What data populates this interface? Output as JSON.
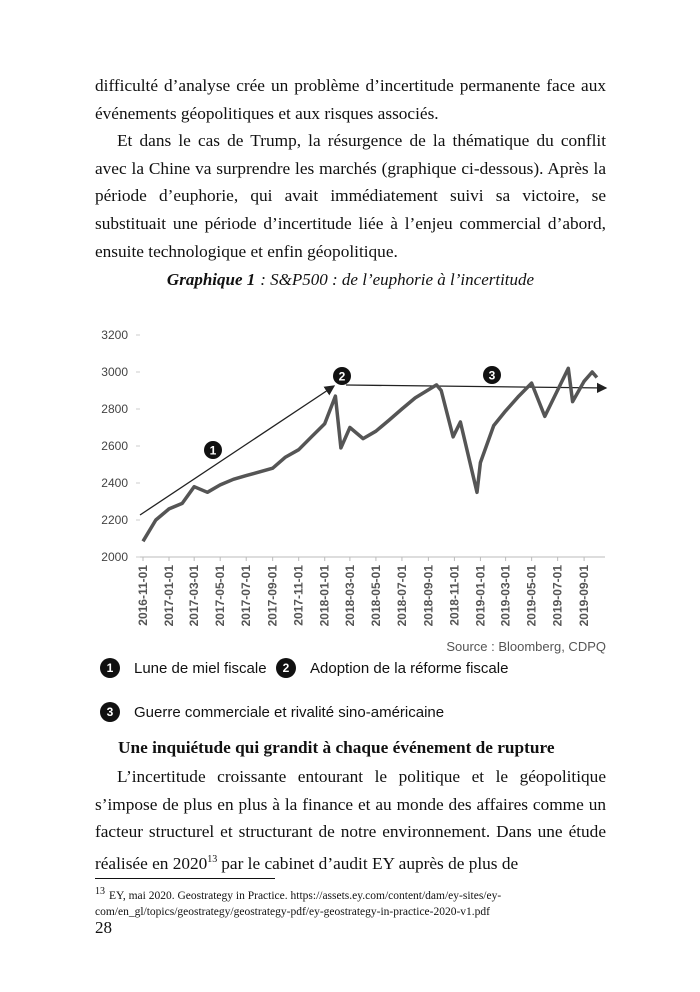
{
  "paragraphs_top": [
    "difficulté d’analyse crée un problème d’incertitude permanente face aux événements géopolitiques et aux risques associés.",
    "Et dans le cas de Trump, la résurgence de la thématique du conflit avec la Chine va surprendre les marchés (graphique ci-dessous). Après la période d’euphorie, qui avait immédiatement suivi sa victoire, se substituait une période d’incertitude liée à l’enjeu commercial d’abord, ensuite technologique et enfin géopolitique."
  ],
  "figure": {
    "label": "Graphique 1",
    "caption": ": S&P500 : de l’euphorie à l’incertitude"
  },
  "chart_data": {
    "type": "line",
    "color": "#555555",
    "x": [
      "2016-11-01",
      "2016-12-01",
      "2017-01-01",
      "2017-02-01",
      "2017-03-01",
      "2017-04-01",
      "2017-05-01",
      "2017-06-01",
      "2017-07-01",
      "2017-08-01",
      "2017-09-01",
      "2017-10-01",
      "2017-11-01",
      "2017-12-01",
      "2018-01-01",
      "2018-01-26",
      "2018-02-08",
      "2018-03-01",
      "2018-04-01",
      "2018-05-01",
      "2018-06-01",
      "2018-07-01",
      "2018-08-01",
      "2018-09-20",
      "2018-10-01",
      "2018-10-29",
      "2018-11-15",
      "2018-12-24",
      "2019-01-01",
      "2019-02-01",
      "2019-03-01",
      "2019-04-01",
      "2019-05-01",
      "2019-06-01",
      "2019-07-26",
      "2019-08-05",
      "2019-09-01",
      "2019-09-20",
      "2019-10-01"
    ],
    "values": [
      2085,
      2200,
      2260,
      2290,
      2380,
      2350,
      2390,
      2420,
      2440,
      2460,
      2480,
      2540,
      2580,
      2650,
      2720,
      2870,
      2590,
      2700,
      2640,
      2680,
      2740,
      2800,
      2860,
      2930,
      2900,
      2650,
      2730,
      2350,
      2510,
      2710,
      2790,
      2870,
      2940,
      2760,
      3020,
      2840,
      2950,
      3000,
      2970
    ],
    "xlim": [
      "2016-10-25",
      "2019-10-20"
    ],
    "xticks": [
      "2016-11-01",
      "2017-01-01",
      "2017-03-01",
      "2017-05-01",
      "2017-07-01",
      "2017-09-01",
      "2017-11-01",
      "2018-01-01",
      "2018-03-01",
      "2018-05-01",
      "2018-07-01",
      "2018-09-01",
      "2018-11-01",
      "2019-01-01",
      "2019-03-01",
      "2019-05-01",
      "2019-07-01",
      "2019-09-01"
    ],
    "ylim": [
      2000,
      3200
    ],
    "yticks": [
      2000,
      2200,
      2400,
      2600,
      2800,
      3000,
      3200
    ],
    "markers": [
      "1",
      "2",
      "3"
    ],
    "source": "Source : Bloomberg, CDPQ"
  },
  "legend": [
    {
      "number": "1",
      "label": "Lune de miel fiscale"
    },
    {
      "number": "2",
      "label": "Adoption de la réforme fiscale"
    },
    {
      "number": "3",
      "label": "Guerre commerciale et rivalité sino-américaine"
    }
  ],
  "section": {
    "heading": "Une inquiétude qui grandit à chaque événement de rupture",
    "before": "L’incertitude croissante entourant le politique et le géopolitique s’impose de plus en plus à la finance et au monde des affaires comme un facteur structurel et structurant de notre environnement. Dans une étude réalisée en 2020",
    "note_ref": "13",
    "after": "par le cabinet d’audit EY auprès de plus de"
  },
  "footnote": {
    "number": "13",
    "text": "EY, mai 2020. Geostrategy in Practice. https://assets.ey.com/content/dam/ey-sites/ey-com/en_gl/topics/geostrategy/geostrategy-pdf/ey-geostrategy-in-practice-2020-v1.pdf"
  },
  "page_number": "28"
}
